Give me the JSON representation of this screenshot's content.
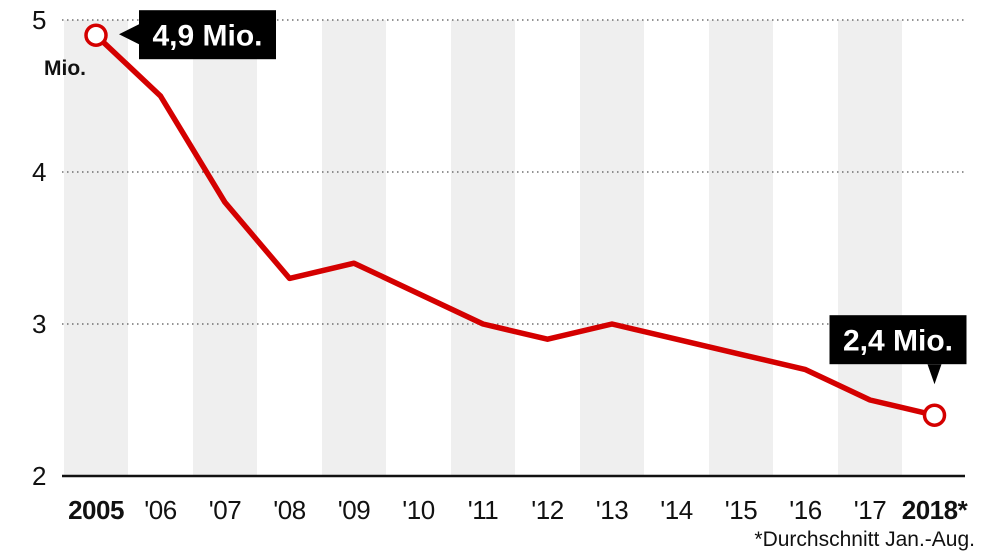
{
  "chart_data": {
    "type": "line",
    "categories": [
      "2005",
      "'06",
      "'07",
      "'08",
      "'09",
      "'10",
      "'11",
      "'12",
      "'13",
      "'14",
      "'15",
      "'16",
      "'17",
      "2018*"
    ],
    "series": [
      {
        "values": [
          4.9,
          4.5,
          3.8,
          3.3,
          3.4,
          3.2,
          3.0,
          2.9,
          3.0,
          2.9,
          2.8,
          2.7,
          2.5,
          2.4
        ]
      }
    ],
    "ylim": [
      2,
      5
    ],
    "yticks": [
      2,
      3,
      4,
      5
    ],
    "unit_label": "Mio.",
    "grid": true,
    "bold_categories": [
      "2005",
      "2018*"
    ],
    "annotations": [
      {
        "text": "4,9 Mio.",
        "category_index": 0
      },
      {
        "text": "2,4 Mio.",
        "category_index": 13
      }
    ],
    "footnote": "*Durchschnitt Jan.-Aug.",
    "colors": {
      "line": "#d40000",
      "band": "#efefef",
      "callout_bg": "#000000",
      "axis": "#111111"
    }
  }
}
